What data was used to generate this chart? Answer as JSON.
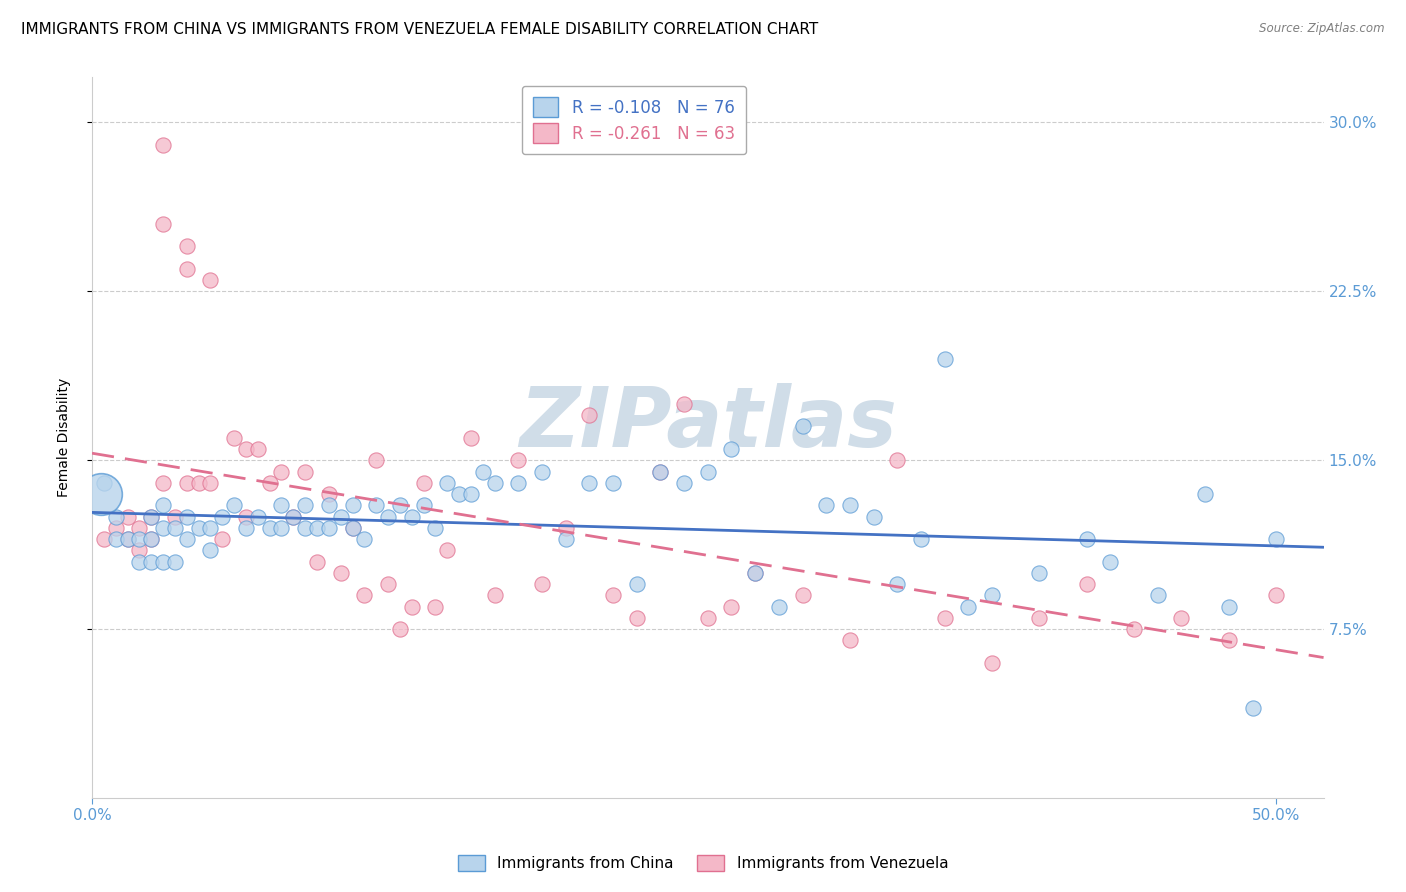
{
  "title": "IMMIGRANTS FROM CHINA VS IMMIGRANTS FROM VENEZUELA FEMALE DISABILITY CORRELATION CHART",
  "source": "Source: ZipAtlas.com",
  "ylabel": "Female Disability",
  "xlim": [
    0.0,
    0.52
  ],
  "ylim": [
    0.0,
    0.32
  ],
  "yticks": [
    0.075,
    0.15,
    0.225,
    0.3
  ],
  "ytick_labels": [
    "7.5%",
    "15.0%",
    "22.5%",
    "30.0%"
  ],
  "xticks": [
    0.0,
    0.5
  ],
  "xtick_labels": [
    "0.0%",
    "50.0%"
  ],
  "china_color": "#b8d4ec",
  "china_color_dark": "#5b9bd5",
  "venezuela_color": "#f4b8c8",
  "venezuela_color_dark": "#e07090",
  "china_R": -0.108,
  "china_N": 76,
  "venezuela_R": -0.261,
  "venezuela_N": 63,
  "legend_label_china": "Immigrants from China",
  "legend_label_venezuela": "Immigrants from Venezuela",
  "china_scatter_x": [
    0.005,
    0.01,
    0.01,
    0.015,
    0.02,
    0.02,
    0.025,
    0.025,
    0.025,
    0.03,
    0.03,
    0.03,
    0.035,
    0.035,
    0.04,
    0.04,
    0.045,
    0.05,
    0.05,
    0.055,
    0.06,
    0.065,
    0.07,
    0.075,
    0.08,
    0.08,
    0.085,
    0.09,
    0.09,
    0.095,
    0.1,
    0.1,
    0.105,
    0.11,
    0.11,
    0.115,
    0.12,
    0.125,
    0.13,
    0.135,
    0.14,
    0.145,
    0.15,
    0.155,
    0.16,
    0.165,
    0.17,
    0.18,
    0.19,
    0.2,
    0.21,
    0.22,
    0.23,
    0.24,
    0.25,
    0.26,
    0.27,
    0.28,
    0.3,
    0.31,
    0.33,
    0.35,
    0.36,
    0.38,
    0.4,
    0.42,
    0.43,
    0.45,
    0.47,
    0.48,
    0.49,
    0.5,
    0.29,
    0.32,
    0.34,
    0.37
  ],
  "china_scatter_y": [
    0.14,
    0.125,
    0.115,
    0.115,
    0.115,
    0.105,
    0.125,
    0.115,
    0.105,
    0.13,
    0.12,
    0.105,
    0.12,
    0.105,
    0.125,
    0.115,
    0.12,
    0.12,
    0.11,
    0.125,
    0.13,
    0.12,
    0.125,
    0.12,
    0.13,
    0.12,
    0.125,
    0.13,
    0.12,
    0.12,
    0.13,
    0.12,
    0.125,
    0.13,
    0.12,
    0.115,
    0.13,
    0.125,
    0.13,
    0.125,
    0.13,
    0.12,
    0.14,
    0.135,
    0.135,
    0.145,
    0.14,
    0.14,
    0.145,
    0.115,
    0.14,
    0.14,
    0.095,
    0.145,
    0.14,
    0.145,
    0.155,
    0.1,
    0.165,
    0.13,
    0.125,
    0.115,
    0.195,
    0.09,
    0.1,
    0.115,
    0.105,
    0.09,
    0.135,
    0.085,
    0.04,
    0.115,
    0.085,
    0.13,
    0.095,
    0.085
  ],
  "venezuela_scatter_x": [
    0.005,
    0.01,
    0.015,
    0.015,
    0.02,
    0.02,
    0.025,
    0.025,
    0.03,
    0.03,
    0.03,
    0.035,
    0.04,
    0.04,
    0.04,
    0.045,
    0.05,
    0.05,
    0.055,
    0.06,
    0.065,
    0.065,
    0.07,
    0.075,
    0.08,
    0.085,
    0.09,
    0.095,
    0.1,
    0.105,
    0.11,
    0.115,
    0.12,
    0.125,
    0.13,
    0.135,
    0.14,
    0.145,
    0.15,
    0.16,
    0.17,
    0.18,
    0.19,
    0.2,
    0.21,
    0.22,
    0.23,
    0.25,
    0.27,
    0.28,
    0.3,
    0.32,
    0.34,
    0.36,
    0.38,
    0.4,
    0.42,
    0.44,
    0.46,
    0.48,
    0.5,
    0.24,
    0.26
  ],
  "venezuela_scatter_y": [
    0.115,
    0.12,
    0.115,
    0.125,
    0.12,
    0.11,
    0.125,
    0.115,
    0.29,
    0.255,
    0.14,
    0.125,
    0.245,
    0.235,
    0.14,
    0.14,
    0.23,
    0.14,
    0.115,
    0.16,
    0.155,
    0.125,
    0.155,
    0.14,
    0.145,
    0.125,
    0.145,
    0.105,
    0.135,
    0.1,
    0.12,
    0.09,
    0.15,
    0.095,
    0.075,
    0.085,
    0.14,
    0.085,
    0.11,
    0.16,
    0.09,
    0.15,
    0.095,
    0.12,
    0.17,
    0.09,
    0.08,
    0.175,
    0.085,
    0.1,
    0.09,
    0.07,
    0.15,
    0.08,
    0.06,
    0.08,
    0.095,
    0.075,
    0.08,
    0.07,
    0.09,
    0.145,
    0.08
  ],
  "background_color": "#ffffff",
  "grid_color": "#cccccc",
  "china_line_color": "#4472c4",
  "venezuela_line_color": "#e07090",
  "title_fontsize": 11,
  "axis_label_fontsize": 10,
  "tick_fontsize": 11,
  "watermark": "ZIPatlas",
  "watermark_color": "#d0dde8"
}
